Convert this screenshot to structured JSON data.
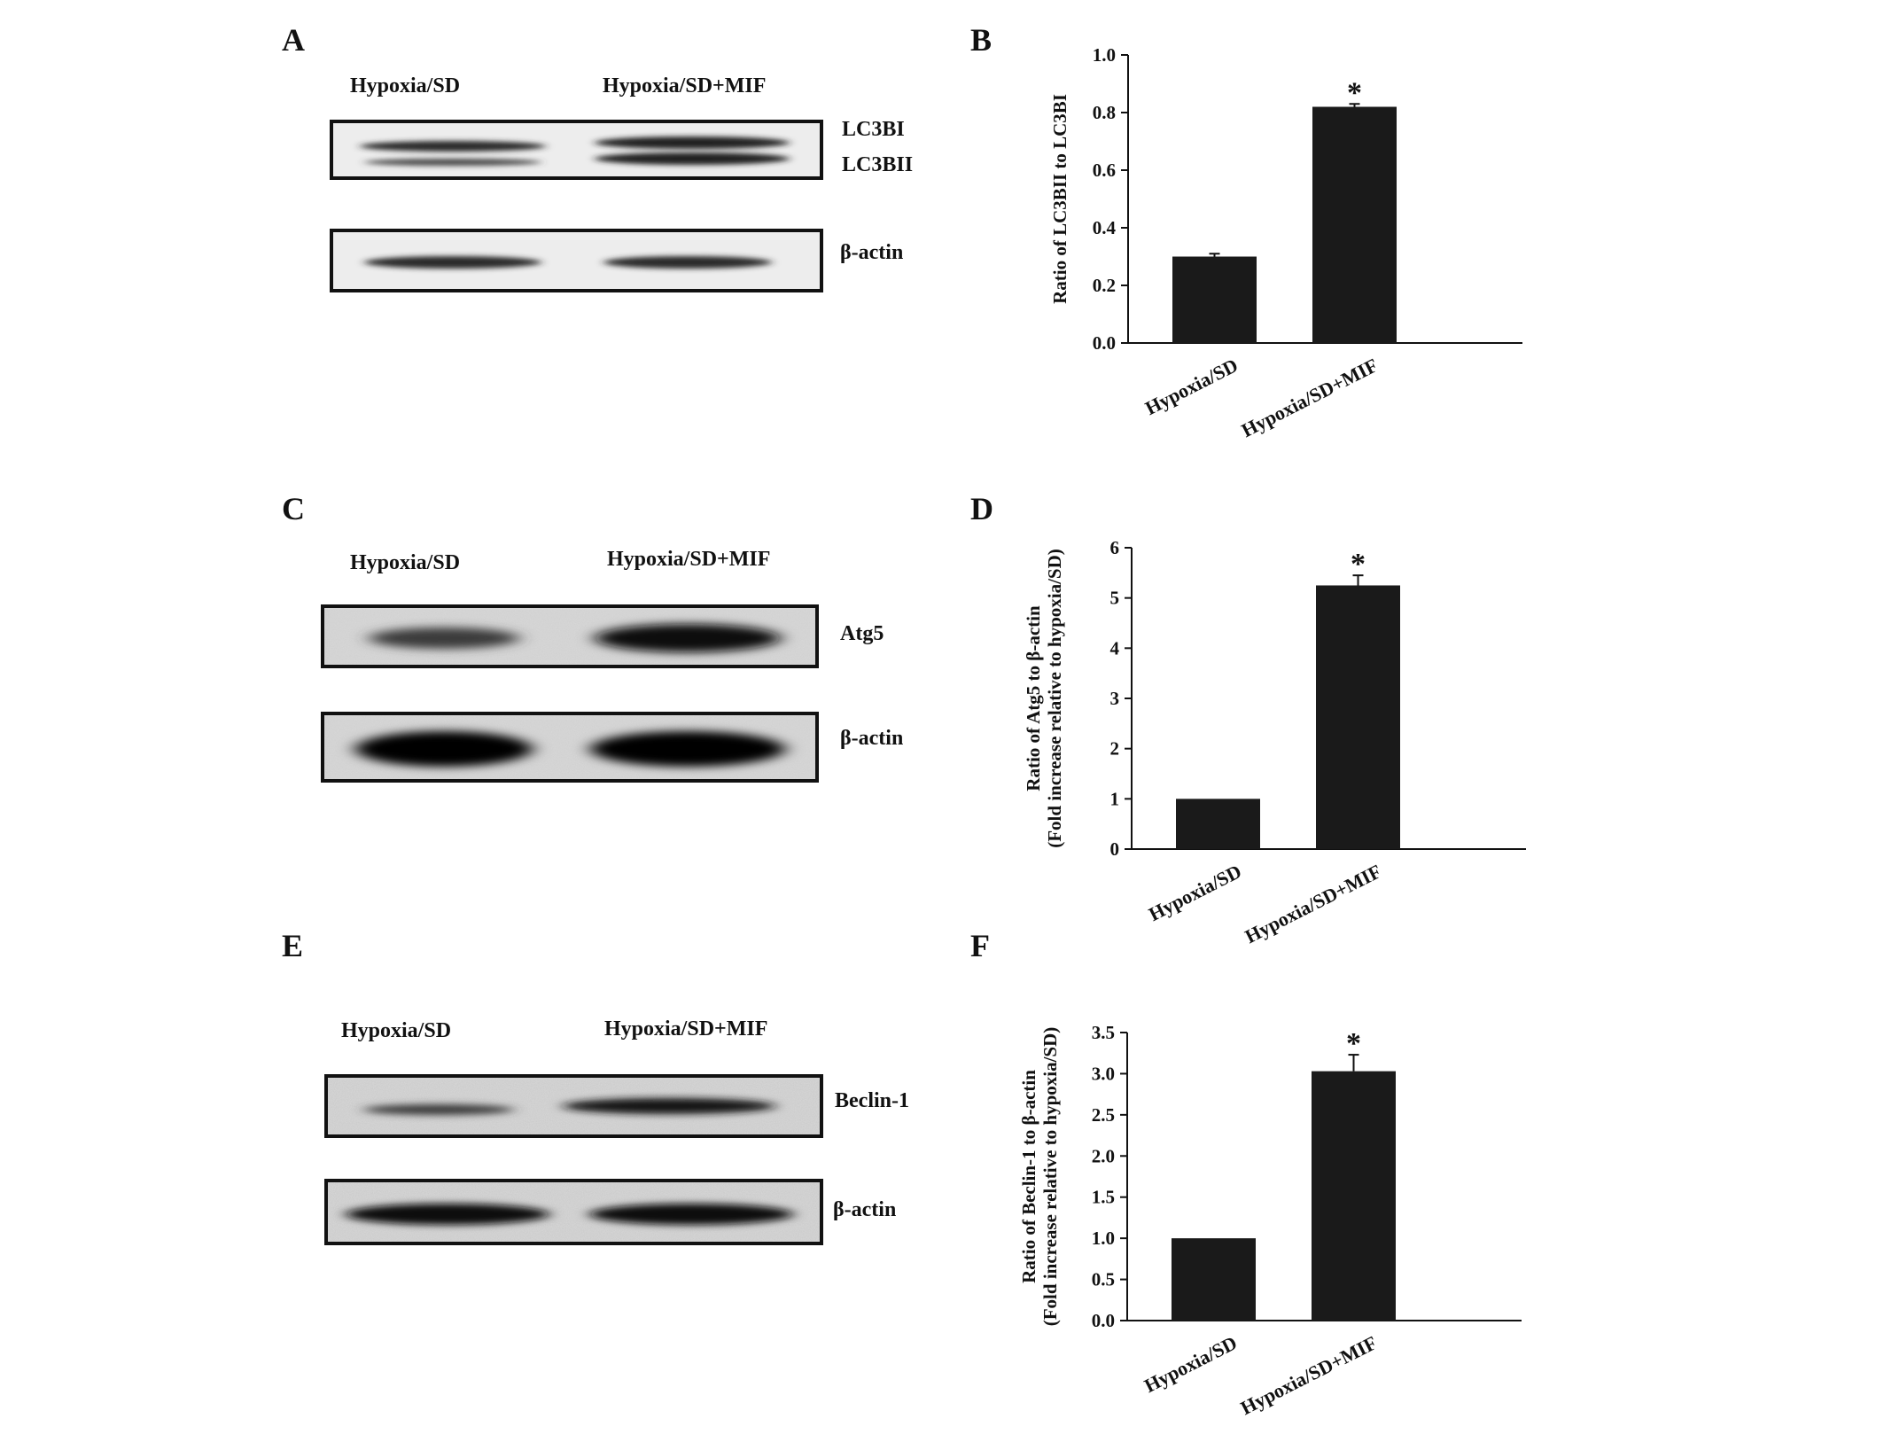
{
  "panels": {
    "A": {
      "letter": "A",
      "lanes": [
        "Hypoxia/SD",
        "Hypoxia/SD+MIF"
      ],
      "blots": [
        {
          "labels": [
            "LC3BI",
            "LC3BII"
          ]
        },
        {
          "labels": [
            "β-actin"
          ]
        }
      ]
    },
    "C": {
      "letter": "C",
      "lanes": [
        "Hypoxia/SD",
        "Hypoxia/SD+MIF"
      ],
      "blots": [
        {
          "labels": [
            "Atg5"
          ]
        },
        {
          "labels": [
            "β-actin"
          ]
        }
      ]
    },
    "E": {
      "letter": "E",
      "lanes": [
        "Hypoxia/SD",
        "Hypoxia/SD+MIF"
      ],
      "blots": [
        {
          "labels": [
            "Beclin-1"
          ]
        },
        {
          "labels": [
            "β-actin"
          ]
        }
      ]
    }
  },
  "chart_data": [
    {
      "panel": "B",
      "type": "bar",
      "categories": [
        "Hypoxia/SD",
        "Hypoxia/SD+MIF"
      ],
      "values": [
        0.3,
        0.82
      ],
      "errors": [
        0.01,
        0.01
      ],
      "significance": [
        "",
        "*"
      ],
      "title": "",
      "xlabel": "",
      "ylabel": [
        "Ratio of LC3BII to LC3BI"
      ],
      "ylim": [
        0,
        1.0
      ],
      "yticks": [
        "0.0",
        "0.2",
        "0.4",
        "0.6",
        "0.8",
        "1.0"
      ],
      "bar_color": "#1a1a1a"
    },
    {
      "panel": "D",
      "type": "bar",
      "categories": [
        "Hypoxia/SD",
        "Hypoxia/SD+MIF"
      ],
      "values": [
        1.0,
        5.25
      ],
      "errors": [
        0,
        0.2
      ],
      "significance": [
        "",
        "*"
      ],
      "title": "",
      "xlabel": "",
      "ylabel": [
        "Ratio of  Atg5  to β-actin",
        "(Fold increase relative to hypoxia/SD)"
      ],
      "ylim": [
        0,
        6
      ],
      "yticks": [
        "0",
        "1",
        "2",
        "3",
        "4",
        "5",
        "6"
      ],
      "bar_color": "#1a1a1a"
    },
    {
      "panel": "F",
      "type": "bar",
      "categories": [
        "Hypoxia/SD",
        "Hypoxia/SD+MIF"
      ],
      "values": [
        1.0,
        3.03
      ],
      "errors": [
        0,
        0.2
      ],
      "significance": [
        "",
        "*"
      ],
      "title": "",
      "xlabel": "",
      "ylabel": [
        "Ratio of Beclin-1 to β-actin",
        "(Fold increase relative to hypoxia/SD)"
      ],
      "ylim": [
        0,
        3.5
      ],
      "yticks": [
        "0.0",
        "0.5",
        "1.0",
        "1.5",
        "2.0",
        "2.5",
        "3.0",
        "3.5"
      ],
      "bar_color": "#1a1a1a"
    }
  ],
  "chart_letters": [
    "B",
    "D",
    "F"
  ]
}
